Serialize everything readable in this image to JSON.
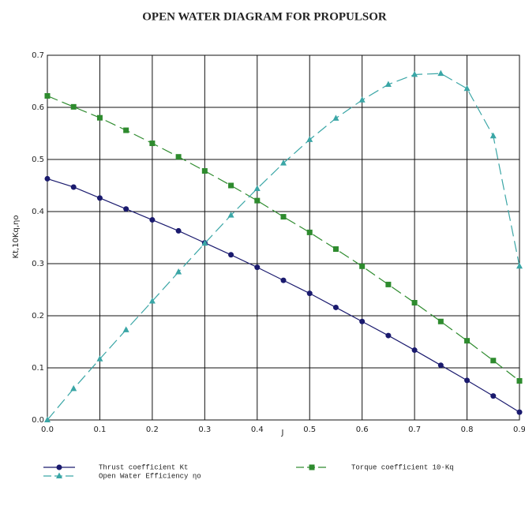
{
  "chart_data": {
    "type": "line",
    "title": "OPEN WATER DIAGRAM FOR PROPULSOR",
    "x_label": "J",
    "y_label": "Kt,10Kq,ηo",
    "x": [
      0,
      0.05,
      0.1,
      0.15,
      0.2,
      0.25,
      0.3,
      0.35,
      0.4,
      0.45,
      0.5,
      0.55,
      0.6,
      0.65,
      0.7,
      0.75,
      0.8,
      0.85,
      0.9
    ],
    "series": [
      {
        "name": "Thrust coefficient Kt",
        "color": "#1a1a6e",
        "marker": "circle",
        "dash": false,
        "values": [
          0.463,
          0.447,
          0.426,
          0.405,
          0.384,
          0.363,
          0.34,
          0.317,
          0.293,
          0.268,
          0.243,
          0.216,
          0.189,
          0.162,
          0.134,
          0.105,
          0.076,
          0.046,
          0.015
        ]
      },
      {
        "name": "Torque coefficient 10·Kq",
        "color": "#2e8b2e",
        "marker": "square",
        "dash": true,
        "values": [
          0.622,
          0.601,
          0.58,
          0.556,
          0.531,
          0.505,
          0.478,
          0.45,
          0.421,
          0.39,
          0.36,
          0.328,
          0.295,
          0.26,
          0.225,
          0.189,
          0.152,
          0.114,
          0.075
        ]
      },
      {
        "name": "Open Water Efficiency ηo",
        "color": "#3aa6a6",
        "marker": "triangle",
        "dash": true,
        "values": [
          0,
          0.06,
          0.117,
          0.173,
          0.228,
          0.284,
          0.339,
          0.393,
          0.444,
          0.493,
          0.538,
          0.579,
          0.614,
          0.644,
          0.663,
          0.665,
          0.636,
          0.545,
          0.295
        ]
      }
    ],
    "xlim": [
      0,
      0.9
    ],
    "ylim": [
      0,
      0.7
    ],
    "xticks": [
      {
        "value": 0,
        "label": "0.0"
      },
      0.1,
      0.2,
      0.3,
      0.4,
      0.5,
      0.6,
      0.7,
      0.8,
      0.9
    ],
    "yticks": [
      {
        "value": 0,
        "label": "0.0"
      },
      0.1,
      0.2,
      0.3,
      0.4,
      0.5,
      0.6,
      0.7
    ],
    "grid": true,
    "legend": "bottom"
  }
}
